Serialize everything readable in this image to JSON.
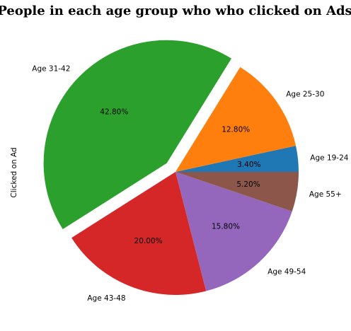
{
  "chart_data": {
    "type": "pie",
    "title": "People in each age group who who clicked on Ads",
    "ylabel": "Clicked on Ad",
    "categories": [
      "Age 19-24",
      "Age 25-30",
      "Age 31-42",
      "Age 43-48",
      "Age 49-54",
      "Age 55+"
    ],
    "values": [
      3.4,
      12.8,
      42.8,
      20.0,
      15.8,
      5.2
    ],
    "value_labels": [
      "3.40%",
      "12.80%",
      "42.80%",
      "20.00%",
      "15.80%",
      "5.20%"
    ],
    "colors": [
      "#1f77b4",
      "#ff7f0e",
      "#2ca02c",
      "#d62728",
      "#9467bd",
      "#8c564b"
    ],
    "explode": [
      0,
      0,
      0.1,
      0,
      0,
      0
    ],
    "start_angle": 0,
    "legend": false
  }
}
